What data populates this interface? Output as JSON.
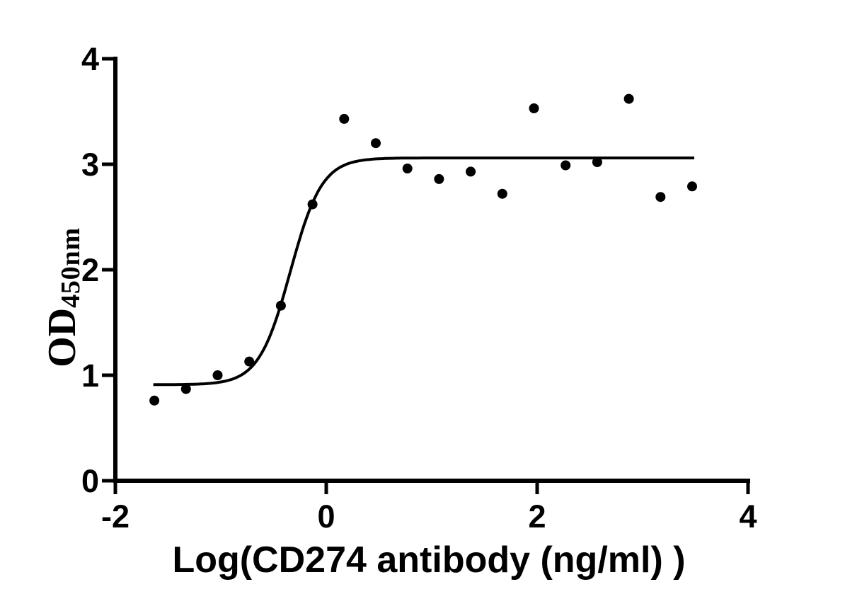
{
  "figure": {
    "background_color": "#ffffff",
    "ink_color": "#000000"
  },
  "chart_data": {
    "type": "scatter",
    "subtype": "sigmoidal-dose-response-curve-fit",
    "title": "",
    "xlabel": "Log(CD274 antibody (ng/ml) )",
    "ylabel": "OD450nm",
    "ylabel_base": "OD",
    "ylabel_subscript": "450nm",
    "xlim": [
      -2,
      4
    ],
    "ylim": [
      0,
      4
    ],
    "x_ticks": [
      -2,
      0,
      2,
      4
    ],
    "y_ticks": [
      0,
      1,
      2,
      3,
      4
    ],
    "grid": false,
    "legend_position": "none",
    "marker": {
      "shape": "circle",
      "radius_px": 7,
      "color": "#000000"
    },
    "curve_color": "#000000",
    "points": [
      {
        "x": -1.63,
        "y": 0.76
      },
      {
        "x": -1.33,
        "y": 0.87
      },
      {
        "x": -1.03,
        "y": 1.0
      },
      {
        "x": -0.73,
        "y": 1.13
      },
      {
        "x": -0.43,
        "y": 1.66
      },
      {
        "x": -0.13,
        "y": 2.62
      },
      {
        "x": 0.17,
        "y": 3.43
      },
      {
        "x": 0.47,
        "y": 3.2
      },
      {
        "x": 0.77,
        "y": 2.96
      },
      {
        "x": 1.07,
        "y": 2.86
      },
      {
        "x": 1.37,
        "y": 2.93
      },
      {
        "x": 1.67,
        "y": 2.72
      },
      {
        "x": 1.97,
        "y": 3.53
      },
      {
        "x": 2.27,
        "y": 2.99
      },
      {
        "x": 2.57,
        "y": 3.02
      },
      {
        "x": 2.87,
        "y": 3.62
      },
      {
        "x": 3.17,
        "y": 2.69
      },
      {
        "x": 3.47,
        "y": 2.79
      }
    ],
    "fit_curve": {
      "model": "four_parameter_logistic",
      "bottom": 0.91,
      "top": 3.06,
      "log_ec50": -0.34,
      "hill_slope": 2.9,
      "x_start": -1.64,
      "x_end": 3.49
    }
  }
}
